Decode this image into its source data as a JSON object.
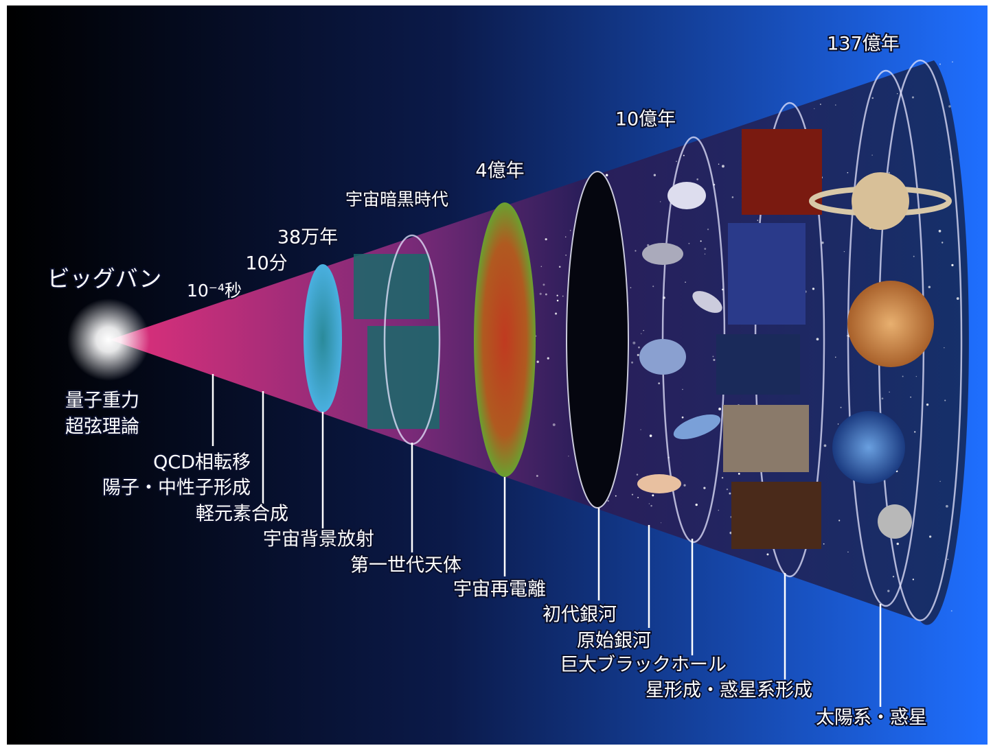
{
  "epochs_top": [
    "137億年",
    "10億年",
    "4億年",
    "宇宙暗黒時代",
    "38万年",
    "10分",
    "10⁻⁴秒"
  ],
  "big_bang": "ビッグバン",
  "events": [
    "量子重力",
    "超弦理論",
    "QCD相転移",
    "陽子・中性子形成",
    "軽元素合成",
    "宇宙背景放射",
    "第一世代天体",
    "宇宙再電離",
    "初代銀河",
    "原始銀河",
    "巨大ブラックホール",
    "星形成・惑星系形成",
    "太陽系・惑星"
  ]
}
